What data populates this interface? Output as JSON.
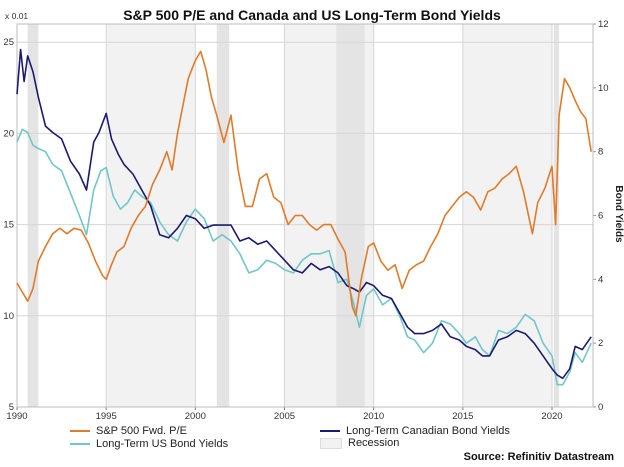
{
  "chart_data": {
    "type": "line",
    "title": "S&P 500 P/E and Canada and US Long-Term Bond Yields",
    "left_axis": {
      "unit_label": "x 0.01",
      "ylim": [
        5,
        26
      ],
      "ticks": [
        "25",
        "20",
        "15",
        "10",
        "5"
      ]
    },
    "right_axis": {
      "label": "Bond Yields",
      "ylim": [
        0,
        12
      ],
      "ticks": [
        "12",
        "10",
        "8",
        "6",
        "4",
        "2",
        "0"
      ]
    },
    "x_axis": {
      "xlim": [
        1990,
        2022.3
      ],
      "ticks": [
        "1990",
        "1995",
        "2000",
        "2005",
        "2010",
        "2015",
        "2020"
      ]
    },
    "recessions": [
      [
        1990.6,
        1991.2
      ],
      [
        2001.2,
        2001.9
      ],
      [
        2007.9,
        2009.5
      ],
      [
        2020.1,
        2020.4
      ]
    ],
    "shaded_bands": [
      [
        1995,
        2000
      ],
      [
        2005,
        2010
      ],
      [
        2015,
        2020
      ]
    ],
    "grid": true,
    "series": [
      {
        "name": "S&P 500 Fwd. P/E",
        "axis": "left",
        "color": "#e07b2a",
        "x": [
          1990.0,
          1990.3,
          1990.6,
          1990.9,
          1991.2,
          1991.6,
          1992.0,
          1992.4,
          1992.8,
          1993.2,
          1993.6,
          1994.0,
          1994.4,
          1994.8,
          1995.0,
          1995.3,
          1995.6,
          1996.0,
          1996.4,
          1996.8,
          1997.2,
          1997.6,
          1998.0,
          1998.4,
          1998.7,
          1999.0,
          1999.3,
          1999.6,
          2000.0,
          2000.3,
          2000.6,
          2000.9,
          2001.2,
          2001.6,
          2002.0,
          2002.4,
          2002.8,
          2003.2,
          2003.6,
          2004.0,
          2004.4,
          2004.8,
          2005.2,
          2005.6,
          2006.0,
          2006.4,
          2006.8,
          2007.2,
          2007.6,
          2008.0,
          2008.4,
          2008.8,
          2009.0,
          2009.3,
          2009.7,
          2010.0,
          2010.4,
          2010.8,
          2011.2,
          2011.6,
          2012.0,
          2012.4,
          2012.8,
          2013.2,
          2013.6,
          2014.0,
          2014.4,
          2014.8,
          2015.2,
          2015.6,
          2016.0,
          2016.4,
          2016.8,
          2017.2,
          2017.6,
          2018.0,
          2018.4,
          2018.9,
          2019.2,
          2019.6,
          2020.0,
          2020.2,
          2020.4,
          2020.7,
          2021.0,
          2021.3,
          2021.6,
          2021.9,
          2022.2
        ],
        "values": [
          11.8,
          11.3,
          10.8,
          11.5,
          13.0,
          13.8,
          14.5,
          14.8,
          14.5,
          14.8,
          14.7,
          14.0,
          13.0,
          12.2,
          12.0,
          12.8,
          13.5,
          13.8,
          14.8,
          15.5,
          16.0,
          17.2,
          18.0,
          19.0,
          18.0,
          20.0,
          21.5,
          23.0,
          24.0,
          24.5,
          23.5,
          22.0,
          21.0,
          19.5,
          21.0,
          18.0,
          16.0,
          16.0,
          17.5,
          17.8,
          16.5,
          16.2,
          15.0,
          15.5,
          15.5,
          15.0,
          14.7,
          15.0,
          15.0,
          14.2,
          13.5,
          10.5,
          10.0,
          12.0,
          13.8,
          14.0,
          13.0,
          12.5,
          12.8,
          11.5,
          12.5,
          12.8,
          13.0,
          13.8,
          14.5,
          15.5,
          16.0,
          16.5,
          16.8,
          16.5,
          15.8,
          16.8,
          17.0,
          17.5,
          17.8,
          18.2,
          16.8,
          14.5,
          16.2,
          17.0,
          18.2,
          15.0,
          21.0,
          23.0,
          22.5,
          21.8,
          21.2,
          20.8,
          19.0
        ]
      },
      {
        "name": "Long-Term Canadian Bond Yields",
        "axis": "right",
        "color": "#1c1a6e",
        "x": [
          1990.0,
          1990.2,
          1990.4,
          1990.6,
          1990.9,
          1991.2,
          1991.6,
          1992.0,
          1992.5,
          1993.0,
          1993.5,
          1993.9,
          1994.3,
          1994.6,
          1995.0,
          1995.3,
          1995.7,
          1996.0,
          1996.5,
          1997.0,
          1997.5,
          1998.0,
          1998.5,
          1999.0,
          1999.5,
          2000.0,
          2000.5,
          2001.0,
          2001.5,
          2002.0,
          2002.5,
          2003.0,
          2003.5,
          2004.0,
          2004.5,
          2005.0,
          2005.5,
          2006.0,
          2006.5,
          2007.0,
          2007.5,
          2008.0,
          2008.5,
          2008.9,
          2009.2,
          2009.6,
          2010.0,
          2010.5,
          2011.0,
          2011.5,
          2011.9,
          2012.3,
          2012.8,
          2013.3,
          2013.8,
          2014.3,
          2014.8,
          2015.2,
          2015.7,
          2016.1,
          2016.5,
          2017.0,
          2017.5,
          2018.0,
          2018.5,
          2019.0,
          2019.5,
          2020.0,
          2020.3,
          2020.6,
          2021.0,
          2021.3,
          2021.7,
          2022.2
        ],
        "values": [
          9.8,
          11.2,
          10.2,
          11.0,
          10.5,
          9.7,
          8.8,
          8.6,
          8.4,
          7.7,
          7.3,
          6.8,
          8.3,
          8.6,
          9.2,
          8.4,
          7.9,
          7.6,
          7.3,
          6.8,
          6.3,
          5.4,
          5.3,
          5.6,
          6.0,
          5.9,
          5.6,
          5.7,
          5.7,
          5.7,
          5.2,
          5.3,
          5.1,
          5.2,
          4.9,
          4.6,
          4.3,
          4.2,
          4.5,
          4.3,
          4.4,
          4.2,
          3.8,
          3.7,
          3.6,
          3.9,
          3.8,
          3.5,
          3.4,
          2.9,
          2.5,
          2.3,
          2.3,
          2.4,
          2.6,
          2.2,
          2.1,
          1.9,
          1.8,
          1.6,
          1.6,
          2.1,
          2.2,
          2.4,
          2.3,
          2.0,
          1.6,
          1.2,
          1.0,
          0.9,
          1.2,
          1.9,
          1.8,
          2.2
        ]
      },
      {
        "name": "Long-Term US Bond Yields",
        "axis": "right",
        "color": "#72c6c9",
        "x": [
          1990.0,
          1990.3,
          1990.6,
          1990.9,
          1991.2,
          1991.6,
          1992.0,
          1992.5,
          1993.0,
          1993.5,
          1993.9,
          1994.3,
          1994.7,
          1995.0,
          1995.4,
          1995.8,
          1996.2,
          1996.6,
          1997.0,
          1997.5,
          1998.0,
          1998.5,
          1999.0,
          1999.5,
          2000.0,
          2000.5,
          2001.0,
          2001.5,
          2002.0,
          2002.5,
          2003.0,
          2003.5,
          2004.0,
          2004.5,
          2005.0,
          2005.5,
          2006.0,
          2006.5,
          2007.0,
          2007.5,
          2008.0,
          2008.5,
          2008.9,
          2009.2,
          2009.6,
          2010.0,
          2010.5,
          2011.0,
          2011.5,
          2011.9,
          2012.3,
          2012.8,
          2013.3,
          2013.8,
          2014.3,
          2014.8,
          2015.2,
          2015.7,
          2016.1,
          2016.5,
          2017.0,
          2017.5,
          2018.0,
          2018.5,
          2019.0,
          2019.5,
          2020.0,
          2020.3,
          2020.6,
          2021.0,
          2021.3,
          2021.7,
          2022.2
        ],
        "values": [
          8.3,
          8.7,
          8.6,
          8.2,
          8.1,
          8.0,
          7.6,
          7.4,
          6.7,
          6.0,
          5.4,
          6.8,
          7.4,
          7.5,
          6.6,
          6.2,
          6.4,
          6.8,
          6.6,
          6.4,
          5.8,
          5.4,
          5.2,
          5.8,
          6.2,
          5.9,
          5.2,
          5.4,
          5.2,
          4.8,
          4.2,
          4.3,
          4.6,
          4.5,
          4.3,
          4.2,
          4.6,
          4.8,
          4.8,
          4.9,
          3.9,
          4.0,
          3.2,
          2.5,
          3.5,
          3.7,
          3.2,
          3.4,
          2.8,
          2.2,
          2.1,
          1.7,
          2.0,
          2.7,
          2.6,
          2.3,
          2.0,
          2.2,
          1.8,
          1.6,
          2.4,
          2.3,
          2.5,
          2.9,
          2.7,
          2.0,
          1.6,
          0.7,
          0.7,
          1.1,
          1.7,
          1.4,
          2.0
        ]
      }
    ],
    "legend": [
      "S&P 500 Fwd. P/E",
      "Long-Term Canadian Bond Yields",
      "Long-Term US Bond Yields",
      "Recession"
    ],
    "source": "Source: Refinitiv Datastream"
  }
}
